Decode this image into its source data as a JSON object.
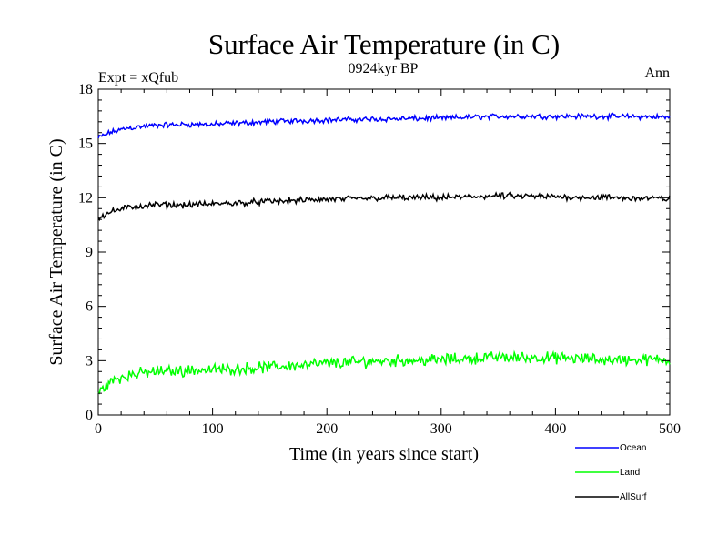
{
  "chart_data": {
    "type": "line",
    "title": "Surface Air Temperature (in C)",
    "subtitle": "0924kyr BP",
    "left_annotation": "Expt = xQfub",
    "right_annotation": "Ann",
    "xlabel": "Time (in years since start)",
    "ylabel": "Surface Air Temperature (in C)",
    "xlim": [
      0,
      500
    ],
    "ylim": [
      0,
      18
    ],
    "xticks": [
      0,
      100,
      200,
      300,
      400,
      500
    ],
    "xtick_labels": [
      "0",
      "100",
      "200",
      "300",
      "400",
      "500"
    ],
    "yticks": [
      0,
      3,
      6,
      9,
      12,
      15,
      18
    ],
    "ytick_labels": [
      "0",
      "3",
      "6",
      "9",
      "12",
      "15",
      "18"
    ],
    "grid": false,
    "legend_position": "bottom-right, below plot",
    "series": [
      {
        "name": "Ocean",
        "color": "#0000ff",
        "x": [
          0,
          10,
          25,
          50,
          75,
          100,
          150,
          200,
          250,
          300,
          350,
          400,
          450,
          500
        ],
        "values": [
          15.3,
          15.6,
          15.85,
          16.0,
          16.05,
          16.05,
          16.2,
          16.3,
          16.35,
          16.4,
          16.5,
          16.5,
          16.5,
          16.45
        ],
        "noise": 0.13
      },
      {
        "name": "Land",
        "color": "#00ff00",
        "x": [
          0,
          10,
          25,
          50,
          75,
          100,
          150,
          200,
          250,
          300,
          350,
          400,
          450,
          500
        ],
        "values": [
          1.2,
          1.8,
          2.2,
          2.4,
          2.45,
          2.5,
          2.65,
          2.85,
          3.0,
          3.05,
          3.2,
          3.15,
          3.05,
          3.05
        ],
        "noise": 0.28
      },
      {
        "name": "AllSurf",
        "color": "#000000",
        "x": [
          0,
          10,
          25,
          50,
          75,
          100,
          150,
          200,
          250,
          300,
          350,
          400,
          450,
          500
        ],
        "values": [
          10.9,
          11.2,
          11.45,
          11.6,
          11.6,
          11.65,
          11.8,
          11.9,
          12.0,
          12.0,
          12.1,
          12.05,
          12.0,
          11.95
        ],
        "noise": 0.15
      }
    ]
  }
}
